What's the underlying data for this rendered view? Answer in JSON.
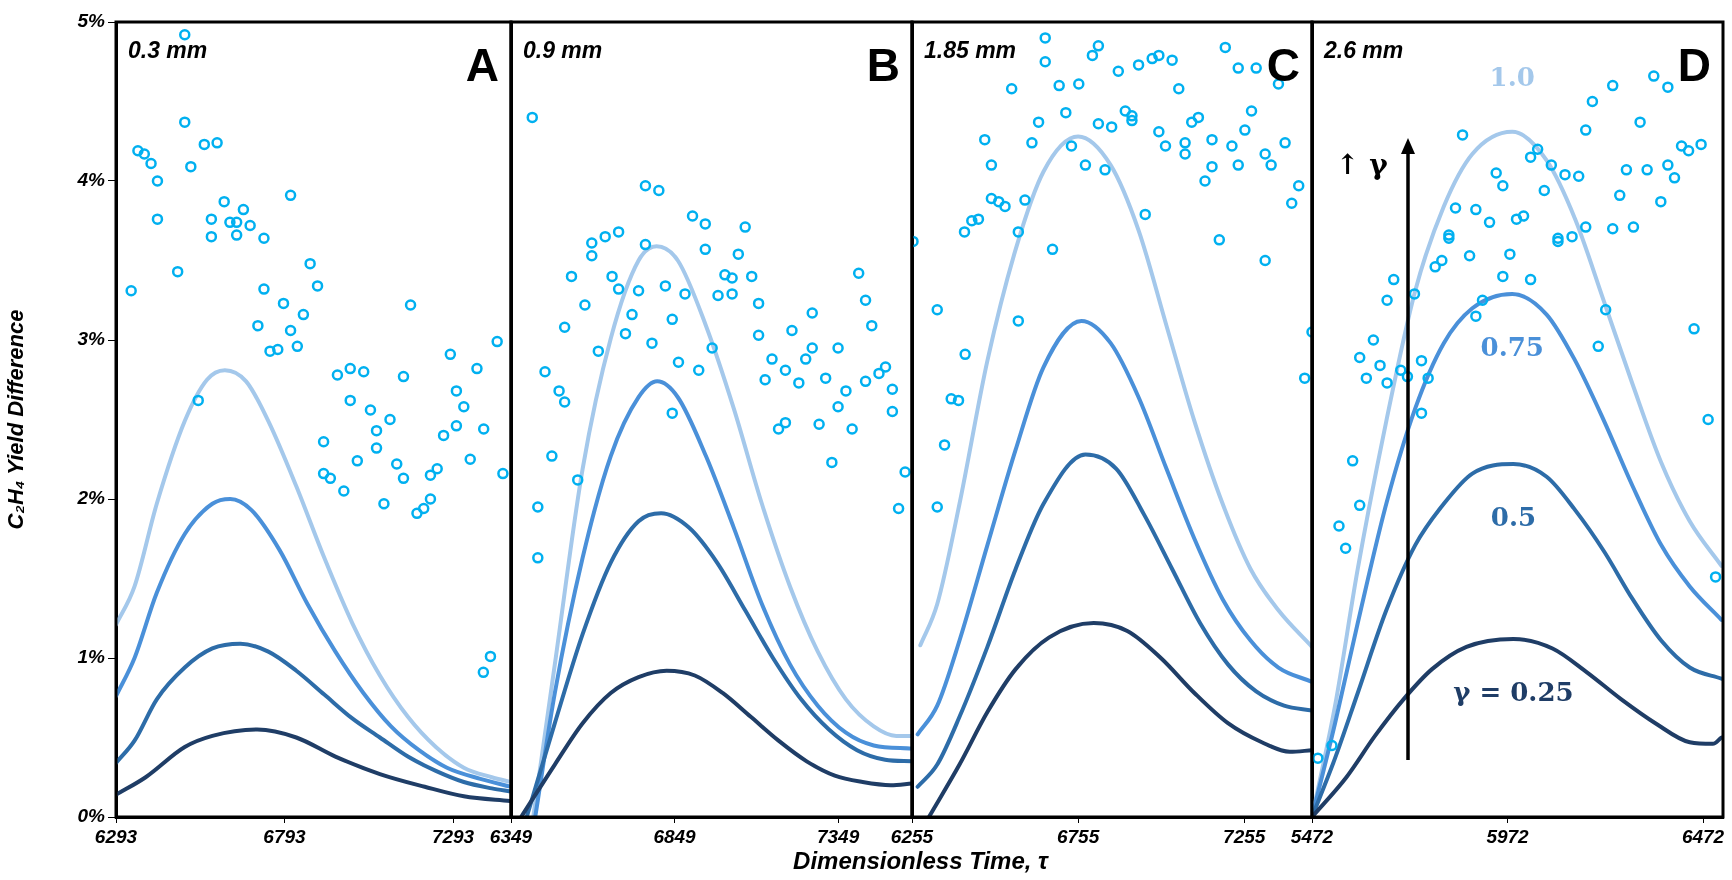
{
  "chart_data": [
    {
      "type": "line",
      "ylabel": "C₂H₄ Yield Difference",
      "annotations": [
        "0.3 mm",
        "A"
      ],
      "xlim": [
        6293,
        7465
      ],
      "xticks": [
        6293,
        6793,
        7293
      ],
      "ylim": [
        0,
        5
      ],
      "yticks": [
        {
          "value": 0,
          "label": "0%"
        },
        {
          "value": 1,
          "label": "1%"
        },
        {
          "value": 2,
          "label": "2%"
        },
        {
          "value": 3,
          "label": "3%"
        },
        {
          "value": 4,
          "label": "4%"
        },
        {
          "value": 5,
          "label": "5%"
        }
      ],
      "marker": "none",
      "line_style": "solid",
      "series": [
        {
          "type": "scatter",
          "marker": "circle",
          "color": "#00b0f0",
          "x": [
            6497,
            6497,
            6358,
            6377,
            6397,
            6416,
            6416,
            6555,
            6593,
            6515,
            6338,
            6476,
            6537,
            6614,
            6576,
            6576,
            6631,
            6651,
            6651,
            6671,
            6691,
            6732,
            6811,
            6732,
            6790,
            6714,
            6811,
            6849,
            6869,
            6891,
            6750,
            6773,
            6831,
            6950,
            6988,
            7028,
            6988,
            7048,
            7066,
            7106,
            6909,
            6909,
            6929,
            6969,
            7009,
            7066,
            7088,
            7126,
            7146,
            7146,
            7167,
            7186,
            7206,
            7226,
            7226,
            7246,
            7265,
            7285,
            7303,
            7303,
            7325,
            7344,
            7364,
            7384,
            7424,
            7441,
            7383,
            7404
          ],
          "values": [
            4.92,
            4.37,
            4.19,
            4.17,
            4.11,
            4.0,
            3.76,
            4.23,
            4.24,
            4.09,
            3.31,
            3.43,
            2.62,
            3.87,
            3.76,
            3.65,
            3.74,
            3.74,
            3.66,
            3.82,
            3.72,
            3.64,
            3.91,
            3.32,
            3.23,
            3.09,
            3.06,
            3.16,
            3.48,
            3.34,
            2.93,
            2.94,
            2.96,
            2.78,
            2.82,
            2.8,
            2.62,
            2.56,
            2.43,
            2.5,
            2.36,
            2.16,
            2.13,
            2.05,
            2.24,
            2.32,
            1.97,
            2.22,
            2.13,
            2.77,
            3.22,
            1.91,
            1.94,
            2.0,
            2.15,
            2.19,
            2.4,
            2.91,
            2.68,
            2.46,
            2.58,
            2.25,
            2.82,
            2.44,
            2.99,
            2.16,
            0.91,
            1.01
          ]
        },
        {
          "type": "line",
          "color": "#1f3d66",
          "x": [
            6293,
            6381,
            6497,
            6579,
            6712,
            6828,
            6944,
            7076,
            7209,
            7325,
            7465
          ],
          "values": [
            0.14,
            0.25,
            0.44,
            0.51,
            0.55,
            0.5,
            0.38,
            0.27,
            0.19,
            0.13,
            0.1
          ]
        },
        {
          "type": "line",
          "color": "#2d6ca8",
          "x": [
            6293,
            6348,
            6414,
            6497,
            6579,
            6662,
            6745,
            6828,
            6911,
            6994,
            7076,
            7159,
            7242,
            7325,
            7408,
            7465
          ],
          "values": [
            0.34,
            0.48,
            0.74,
            0.94,
            1.06,
            1.09,
            1.04,
            0.92,
            0.77,
            0.62,
            0.5,
            0.38,
            0.29,
            0.22,
            0.18,
            0.16
          ]
        },
        {
          "type": "line",
          "color": "#4a90d9",
          "x": [
            6293,
            6348,
            6414,
            6497,
            6579,
            6632,
            6695,
            6778,
            6861,
            6944,
            7027,
            7109,
            7192,
            7275,
            7374,
            7465
          ],
          "values": [
            0.76,
            1.0,
            1.41,
            1.78,
            1.97,
            2.0,
            1.93,
            1.68,
            1.34,
            1.04,
            0.78,
            0.57,
            0.42,
            0.31,
            0.24,
            0.19
          ]
        },
        {
          "type": "line",
          "color": "#a4c8eb",
          "x": [
            6293,
            6348,
            6414,
            6497,
            6563,
            6616,
            6679,
            6745,
            6828,
            6911,
            6994,
            7076,
            7159,
            7242,
            7325,
            7408,
            7465
          ],
          "values": [
            1.21,
            1.45,
            1.97,
            2.49,
            2.75,
            2.81,
            2.74,
            2.49,
            2.08,
            1.63,
            1.22,
            0.89,
            0.63,
            0.44,
            0.31,
            0.25,
            0.22
          ]
        }
      ]
    },
    {
      "type": "line",
      "annotations": [
        "0.9 mm",
        "B"
      ],
      "tick_labels": "x",
      "xlim": [
        6349,
        7575
      ],
      "xticks": [
        6349,
        6849,
        7349
      ],
      "ylim": [
        0,
        5
      ],
      "marker": "none",
      "line_style": "solid",
      "series": [
        {
          "type": "scatter",
          "marker": "circle",
          "color": "#00b0f0",
          "x": [
            6414,
            6453,
            6496,
            6513,
            6474,
            6431,
            6431,
            6553,
            6513,
            6534,
            6575,
            6596,
            6596,
            6616,
            6637,
            6678,
            6658,
            6678,
            6699,
            6719,
            6739,
            6760,
            6801,
            6760,
            6780,
            6821,
            6842,
            6842,
            6861,
            6881,
            6904,
            6943,
            6943,
            6923,
            6964,
            6982,
            7003,
            7025,
            7025,
            7044,
            7065,
            7085,
            7106,
            7106,
            7126,
            7147,
            7167,
            7188,
            7188,
            7208,
            7229,
            7250,
            7270,
            7270,
            7291,
            7311,
            7330,
            7349,
            7349,
            7373,
            7392,
            7412,
            7433,
            7433,
            7452,
            7474,
            7494,
            7515,
            7515,
            7554,
            7534
          ],
          "values": [
            4.4,
            2.8,
            2.68,
            2.61,
            2.27,
            1.95,
            1.63,
            2.12,
            3.08,
            3.4,
            3.22,
            3.61,
            3.53,
            2.93,
            3.65,
            3.68,
            3.4,
            3.32,
            3.04,
            3.16,
            3.31,
            3.97,
            3.94,
            3.6,
            2.98,
            3.34,
            3.13,
            2.54,
            2.86,
            3.29,
            3.78,
            3.73,
            3.57,
            2.81,
            2.95,
            3.28,
            3.41,
            3.29,
            3.39,
            3.54,
            3.71,
            3.4,
            3.23,
            3.03,
            2.75,
            2.88,
            2.44,
            2.48,
            2.81,
            3.06,
            2.73,
            2.88,
            2.95,
            3.17,
            2.47,
            2.76,
            2.23,
            2.95,
            2.58,
            2.68,
            2.44,
            3.42,
            3.25,
            2.74,
            3.09,
            2.79,
            2.83,
            2.69,
            2.55,
            2.17,
            1.94
          ]
        },
        {
          "type": "line",
          "color": "#1f3d66",
          "x": [
            6380,
            6483,
            6568,
            6654,
            6739,
            6825,
            6911,
            6996,
            7082,
            7167,
            7253,
            7339,
            7424,
            7510,
            7575
          ],
          "values": [
            0,
            0.33,
            0.59,
            0.78,
            0.88,
            0.92,
            0.89,
            0.78,
            0.63,
            0.48,
            0.35,
            0.26,
            0.22,
            0.2,
            0.21
          ]
        },
        {
          "type": "line",
          "color": "#2d6ca8",
          "x": [
            6397,
            6483,
            6568,
            6654,
            6739,
            6808,
            6893,
            6979,
            7065,
            7150,
            7236,
            7321,
            7407,
            7493,
            7575
          ],
          "values": [
            0,
            0.59,
            1.15,
            1.6,
            1.86,
            1.91,
            1.82,
            1.6,
            1.3,
            1.0,
            0.74,
            0.55,
            0.42,
            0.36,
            0.35
          ]
        },
        {
          "type": "line",
          "color": "#4a90d9",
          "x": [
            6423,
            6483,
            6568,
            6654,
            6739,
            6796,
            6859,
            6945,
            7030,
            7116,
            7202,
            7287,
            7373,
            7458,
            7575
          ],
          "values": [
            0,
            0.78,
            1.63,
            2.27,
            2.64,
            2.74,
            2.64,
            2.27,
            1.82,
            1.34,
            0.96,
            0.7,
            0.53,
            0.45,
            0.43
          ]
        },
        {
          "type": "line",
          "color": "#a4c8eb",
          "x": [
            6417,
            6483,
            6568,
            6654,
            6739,
            6794,
            6859,
            6945,
            7030,
            7116,
            7202,
            7287,
            7373,
            7458,
            7527,
            7575
          ],
          "values": [
            0,
            0.96,
            2.19,
            3.01,
            3.5,
            3.59,
            3.5,
            3.09,
            2.57,
            1.97,
            1.45,
            1.04,
            0.74,
            0.57,
            0.51,
            0.51
          ]
        }
      ]
    },
    {
      "type": "line",
      "xlabel": "Dimensionless Time, τ",
      "annotations": [
        "1.85 mm",
        "C"
      ],
      "tick_labels": "x",
      "xlim": [
        6255,
        7459
      ],
      "xticks": [
        6255,
        6755,
        7255
      ],
      "ylim": [
        0,
        5
      ],
      "marker": "none",
      "line_style": "solid",
      "series": [
        {
          "type": "scatter",
          "marker": "circle",
          "color": "#00b0f0",
          "x": [
            6258,
            6331,
            6331,
            6353,
            6373,
            6395,
            6415,
            6413,
            6435,
            6455,
            6474,
            6494,
            6494,
            6516,
            6535,
            6555,
            6575,
            6575,
            6595,
            6616,
            6636,
            6656,
            6656,
            6678,
            6698,
            6718,
            6735,
            6757,
            6777,
            6798,
            6816,
            6816,
            6836,
            6856,
            6876,
            6897,
            6917,
            6917,
            6937,
            6957,
            6978,
            6998,
            6998,
            7018,
            7038,
            7058,
            7077,
            7077,
            7097,
            7117,
            7137,
            7158,
            7158,
            7180,
            7198,
            7218,
            7237,
            7237,
            7257,
            7277,
            7291,
            7318,
            7318,
            7336,
            7358,
            7378,
            7398,
            7419,
            7437,
            7459
          ],
          "values": [
            3.62,
            3.19,
            1.95,
            2.34,
            2.63,
            2.62,
            2.91,
            3.68,
            3.75,
            3.76,
            4.26,
            4.1,
            3.89,
            3.87,
            3.84,
            4.58,
            3.68,
            3.12,
            3.88,
            4.24,
            4.37,
            4.9,
            4.75,
            3.57,
            4.6,
            4.43,
            4.22,
            4.61,
            4.1,
            4.79,
            4.85,
            4.36,
            4.07,
            4.34,
            4.69,
            4.44,
            4.41,
            4.38,
            4.73,
            3.79,
            4.77,
            4.79,
            4.31,
            4.22,
            4.76,
            4.58,
            4.24,
            4.17,
            4.37,
            4.4,
            4.0,
            4.26,
            4.09,
            3.63,
            4.84,
            4.22,
            4.71,
            4.1,
            4.32,
            4.44,
            4.71,
            4.17,
            3.5,
            4.1,
            4.61,
            4.24,
            3.86,
            3.97,
            2.76,
            3.05
          ]
        },
        {
          "type": "line",
          "color": "#1f3d66",
          "x": [
            6306,
            6398,
            6482,
            6567,
            6668,
            6802,
            6903,
            7004,
            7105,
            7206,
            7308,
            7392,
            7459
          ],
          "values": [
            0,
            0.33,
            0.66,
            0.93,
            1.13,
            1.22,
            1.17,
            1.0,
            0.78,
            0.59,
            0.47,
            0.41,
            0.42
          ]
        },
        {
          "type": "line",
          "color": "#2d6ca8",
          "x": [
            6272,
            6331,
            6398,
            6482,
            6567,
            6651,
            6777,
            6870,
            6954,
            7038,
            7122,
            7206,
            7291,
            7375,
            7459
          ],
          "values": [
            0.19,
            0.33,
            0.63,
            1.07,
            1.56,
            1.97,
            2.28,
            2.19,
            1.9,
            1.56,
            1.22,
            0.96,
            0.79,
            0.7,
            0.67
          ]
        },
        {
          "type": "line",
          "color": "#4a90d9",
          "x": [
            6272,
            6331,
            6398,
            6482,
            6567,
            6651,
            6765,
            6853,
            6937,
            7021,
            7105,
            7190,
            7274,
            7358,
            7459
          ],
          "values": [
            0.52,
            0.7,
            1.11,
            1.71,
            2.31,
            2.83,
            3.12,
            2.98,
            2.64,
            2.19,
            1.75,
            1.37,
            1.11,
            0.94,
            0.85
          ]
        },
        {
          "type": "line",
          "color": "#a4c8eb",
          "x": [
            6280,
            6331,
            6398,
            6482,
            6567,
            6651,
            6755,
            6853,
            6937,
            7021,
            7105,
            7190,
            7274,
            7358,
            7459
          ],
          "values": [
            1.08,
            1.34,
            1.97,
            2.87,
            3.57,
            4.06,
            4.28,
            4.1,
            3.69,
            3.09,
            2.49,
            1.97,
            1.56,
            1.3,
            1.07
          ]
        }
      ]
    },
    {
      "type": "line",
      "annotations": [
        "2.6 mm",
        "D",
        "↑ γ"
      ],
      "tick_labels": "x",
      "xlim": [
        5472,
        6523
      ],
      "xticks": [
        5472,
        5972,
        6472
      ],
      "ylim": [
        0,
        5
      ],
      "marker": "none",
      "line_style": "solid",
      "series": [
        {
          "type": "scatter",
          "marker": "circle",
          "color": "#00b0f0",
          "x": [
            5487,
            5523,
            5541,
            5558,
            5576,
            5594,
            5594,
            5611,
            5629,
            5646,
            5664,
            5664,
            5681,
            5699,
            5716,
            5734,
            5752,
            5752,
            5769,
            5787,
            5804,
            5822,
            5822,
            5839,
            5857,
            5875,
            5891,
            5891,
            5908,
            5926,
            5943,
            5960,
            5960,
            5978,
            5995,
            6013,
            6031,
            6031,
            6049,
            6066,
            6084,
            6101,
            6101,
            6119,
            6137,
            6154,
            6172,
            6172,
            6189,
            6204,
            6223,
            6241,
            6241,
            6259,
            6276,
            6294,
            6311,
            6329,
            6346,
            6364,
            6382,
            6382,
            6399,
            6417,
            6435,
            6449,
            6467,
            6485,
            6504
          ],
          "values": [
            0.37,
            0.45,
            1.83,
            1.69,
            2.24,
            1.96,
            2.89,
            2.76,
            3.0,
            2.84,
            2.73,
            3.25,
            3.38,
            2.81,
            2.77,
            3.29,
            2.87,
            2.54,
            2.76,
            3.46,
            3.5,
            3.64,
            3.66,
            3.83,
            4.29,
            3.53,
            3.82,
            3.15,
            3.25,
            3.74,
            4.05,
            3.97,
            3.4,
            3.54,
            3.76,
            3.78,
            4.15,
            3.38,
            4.2,
            3.94,
            4.1,
            3.64,
            3.62,
            4.04,
            3.65,
            4.03,
            3.71,
            4.32,
            4.5,
            2.96,
            3.19,
            4.6,
            3.7,
            3.91,
            4.07,
            3.71,
            4.37,
            4.07,
            4.66,
            3.87,
            4.59,
            4.1,
            4.02,
            4.22,
            4.19,
            3.07,
            4.23,
            2.5,
            1.51
          ]
        },
        {
          "type": "line",
          "name": "γ = 0.25",
          "color": "#1f3d66",
          "x": [
            5472,
            5560,
            5633,
            5706,
            5779,
            5867,
            5987,
            6087,
            6175,
            6263,
            6350,
            6438,
            6497,
            6519
          ],
          "values": [
            0,
            0.25,
            0.51,
            0.74,
            0.93,
            1.07,
            1.12,
            1.06,
            0.91,
            0.74,
            0.59,
            0.47,
            0.46,
            0.5
          ]
        },
        {
          "type": "line",
          "name": "0.5",
          "color": "#2d6ca8",
          "x": [
            5472,
            5531,
            5589,
            5662,
            5736,
            5809,
            5882,
            5987,
            6072,
            6145,
            6219,
            6292,
            6365,
            6438,
            6519
          ],
          "values": [
            0,
            0.37,
            0.78,
            1.3,
            1.71,
            1.97,
            2.16,
            2.22,
            2.14,
            1.93,
            1.67,
            1.37,
            1.11,
            0.94,
            0.87
          ]
        },
        {
          "type": "line",
          "name": "0.75",
          "color": "#4a90d9",
          "x": [
            5472,
            5531,
            5589,
            5662,
            5736,
            5809,
            5882,
            5984,
            6072,
            6145,
            6219,
            6292,
            6365,
            6438,
            6519
          ],
          "values": [
            0,
            0.59,
            1.22,
            1.97,
            2.57,
            2.98,
            3.2,
            3.29,
            3.16,
            2.87,
            2.49,
            2.08,
            1.71,
            1.45,
            1.24
          ]
        },
        {
          "type": "line",
          "name": "1.0",
          "color": "#a4c8eb",
          "x": [
            5472,
            5531,
            5589,
            5662,
            5736,
            5809,
            5882,
            5984,
            6072,
            6145,
            6219,
            6292,
            6365,
            6438,
            6519
          ],
          "values": [
            0,
            0.7,
            1.56,
            2.49,
            3.31,
            3.84,
            4.17,
            4.31,
            4.13,
            3.76,
            3.24,
            2.72,
            2.23,
            1.86,
            1.58
          ]
        }
      ]
    }
  ]
}
